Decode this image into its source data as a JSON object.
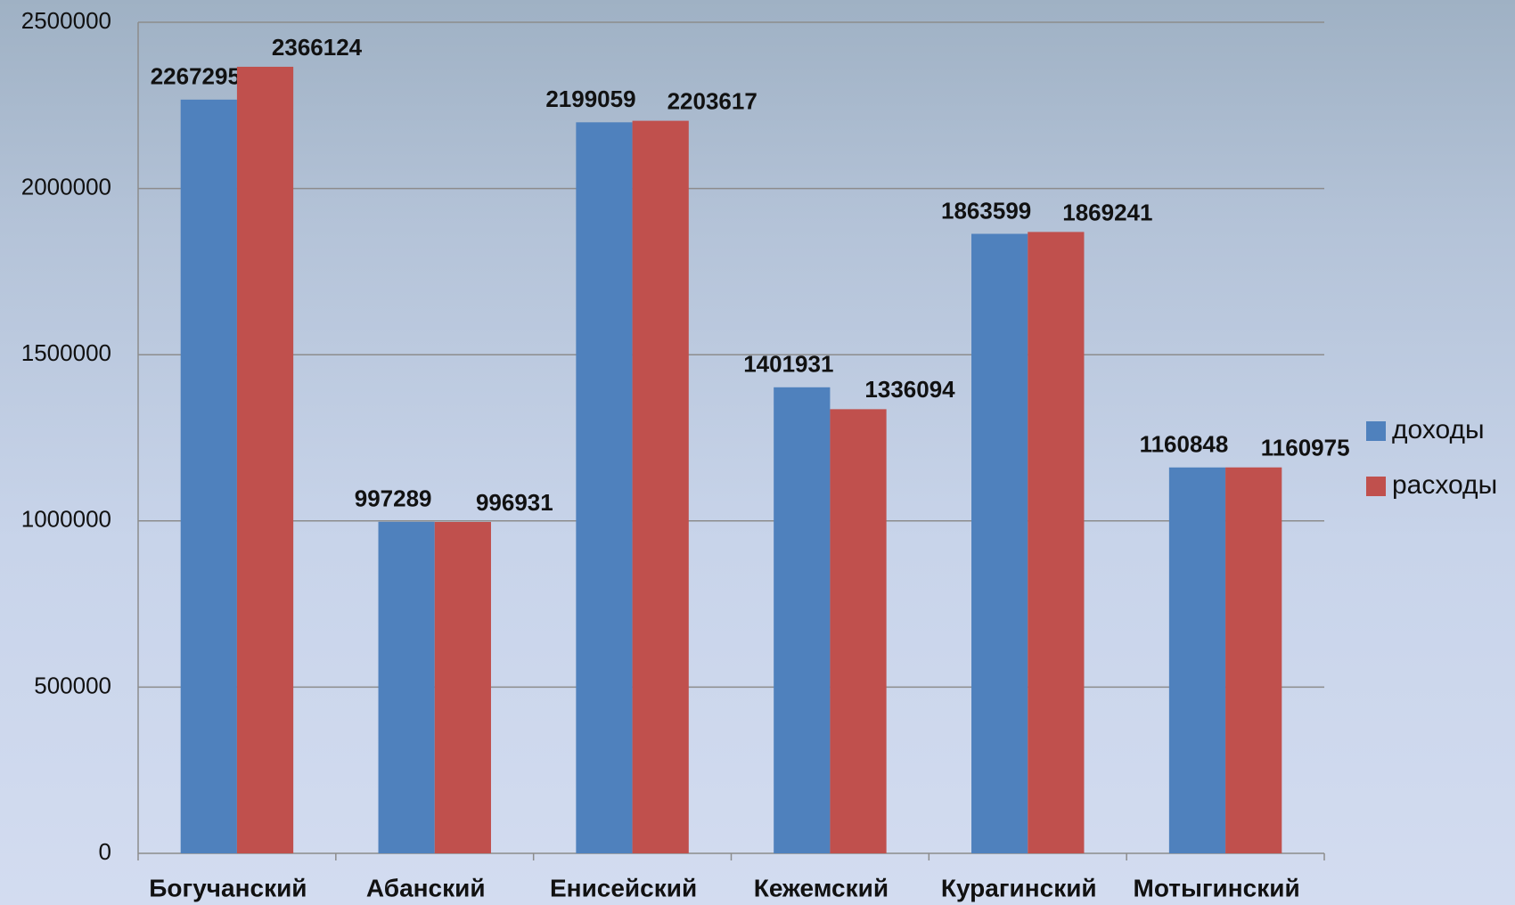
{
  "chart_data": {
    "type": "bar",
    "categories": [
      "Богучанский",
      "Абанский",
      "Енисейский",
      "Кежемский",
      "Курагинский",
      "Мотыгинский"
    ],
    "series": [
      {
        "name": "доходы",
        "color": "#4f81bd",
        "values": [
          2267295,
          997289,
          2199059,
          1401931,
          1863599,
          1160848
        ]
      },
      {
        "name": "расходы",
        "color": "#c0504d",
        "values": [
          2366124,
          996931,
          2203617,
          1336094,
          1869241,
          1160975
        ]
      }
    ],
    "ylim": [
      0,
      2500000
    ],
    "yticks": [
      0,
      500000,
      1000000,
      1500000,
      2000000,
      2500000
    ],
    "grid": true,
    "legend": "right"
  }
}
